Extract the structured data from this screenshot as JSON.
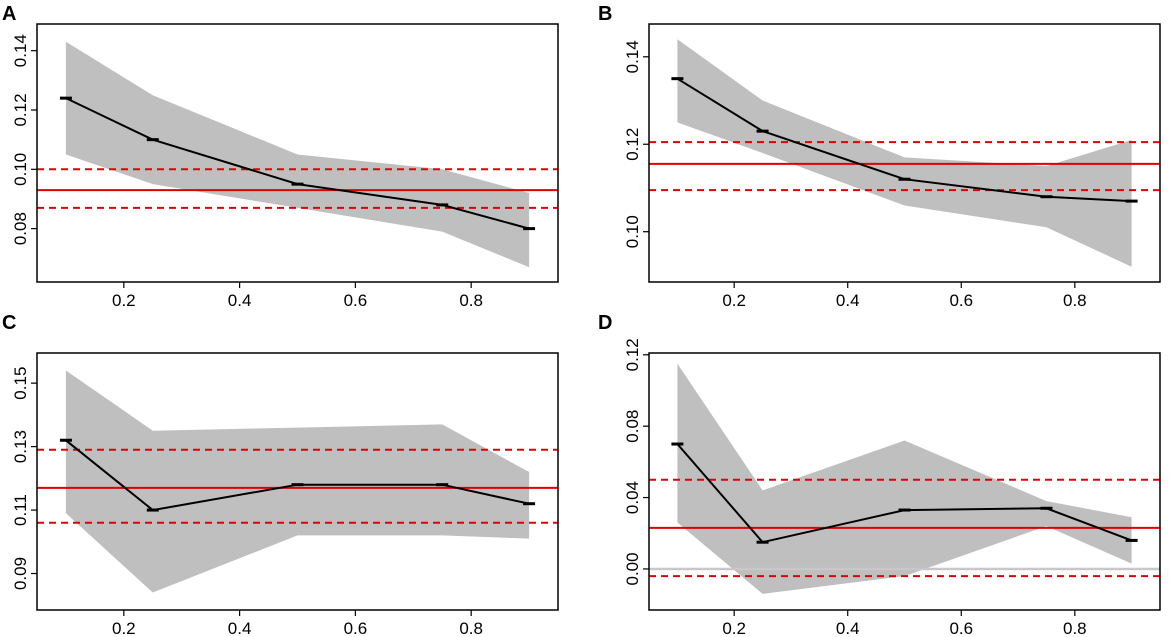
{
  "figure": {
    "title": ""
  },
  "colors": {
    "band": "#bfbfbf",
    "estimate": "#000000",
    "reference": "#e00000",
    "zero_line": "#c8c8c8",
    "frame": "#000000"
  },
  "chart_data": [
    {
      "panel": "A",
      "type": "line",
      "x": [
        0.1,
        0.25,
        0.5,
        0.75,
        0.9
      ],
      "series": [
        {
          "name": "estimate",
          "values": [
            0.124,
            0.11,
            0.095,
            0.088,
            0.08
          ]
        },
        {
          "name": "band_upper",
          "values": [
            0.143,
            0.125,
            0.105,
            0.1,
            0.092
          ]
        },
        {
          "name": "band_lower",
          "values": [
            0.105,
            0.095,
            0.087,
            0.079,
            0.067
          ]
        }
      ],
      "hlines": {
        "solid": 0.093,
        "dashed": [
          0.1,
          0.087
        ]
      },
      "xlim": [
        0.05,
        0.95
      ],
      "ylim": [
        0.062,
        0.149
      ],
      "xticks": [
        "0.2",
        "0.4",
        "0.6",
        "0.8"
      ],
      "yticks": [
        "0.08",
        "0.10",
        "0.12",
        "0.14"
      ],
      "xlabel": "",
      "ylabel": "",
      "title": ""
    },
    {
      "panel": "B",
      "type": "line",
      "x": [
        0.1,
        0.25,
        0.5,
        0.75,
        0.9
      ],
      "series": [
        {
          "name": "estimate",
          "values": [
            0.135,
            0.123,
            0.112,
            0.108,
            0.107
          ]
        },
        {
          "name": "band_upper",
          "values": [
            0.144,
            0.13,
            0.117,
            0.115,
            0.121
          ]
        },
        {
          "name": "band_lower",
          "values": [
            0.125,
            0.118,
            0.106,
            0.101,
            0.092
          ]
        }
      ],
      "hlines": {
        "solid": 0.1155,
        "dashed": [
          0.1205,
          0.1095
        ]
      },
      "xlim": [
        0.05,
        0.95
      ],
      "ylim": [
        0.0885,
        0.1475
      ],
      "xticks": [
        "0.2",
        "0.4",
        "0.6",
        "0.8"
      ],
      "yticks": [
        "0.10",
        "0.12",
        "0.14"
      ],
      "xlabel": "",
      "ylabel": "",
      "title": ""
    },
    {
      "panel": "C",
      "type": "line",
      "x": [
        0.1,
        0.25,
        0.5,
        0.75,
        0.9
      ],
      "series": [
        {
          "name": "estimate",
          "values": [
            0.132,
            0.11,
            0.118,
            0.118,
            0.112
          ]
        },
        {
          "name": "band_upper",
          "values": [
            0.154,
            0.135,
            0.136,
            0.137,
            0.122
          ]
        },
        {
          "name": "band_lower",
          "values": [
            0.109,
            0.084,
            0.102,
            0.102,
            0.101
          ]
        }
      ],
      "hlines": {
        "solid": 0.117,
        "dashed": [
          0.129,
          0.106
        ]
      },
      "xlim": [
        0.05,
        0.95
      ],
      "ylim": [
        0.0785,
        0.1595
      ],
      "xticks": [
        "0.2",
        "0.4",
        "0.6",
        "0.8"
      ],
      "yticks": [
        "0.09",
        "0.11",
        "0.13",
        "0.15"
      ],
      "xlabel": "",
      "ylabel": "",
      "title": ""
    },
    {
      "panel": "D",
      "type": "line",
      "x": [
        0.1,
        0.25,
        0.5,
        0.75,
        0.9
      ],
      "series": [
        {
          "name": "estimate",
          "values": [
            0.07,
            0.015,
            0.033,
            0.034,
            0.016
          ]
        },
        {
          "name": "band_upper",
          "values": [
            0.115,
            0.044,
            0.072,
            0.038,
            0.029
          ]
        },
        {
          "name": "band_lower",
          "values": [
            0.026,
            -0.014,
            -0.004,
            0.024,
            0.003
          ]
        }
      ],
      "hlines": {
        "solid": 0.023,
        "dashed": [
          0.05,
          -0.004
        ],
        "zero": 0.0
      },
      "xlim": [
        0.05,
        0.95
      ],
      "ylim": [
        -0.023,
        0.121
      ],
      "xticks": [
        "0.2",
        "0.4",
        "0.6",
        "0.8"
      ],
      "yticks": [
        "0.00",
        "0.04",
        "0.08",
        "0.12"
      ],
      "xlabel": "",
      "ylabel": "",
      "title": ""
    }
  ]
}
